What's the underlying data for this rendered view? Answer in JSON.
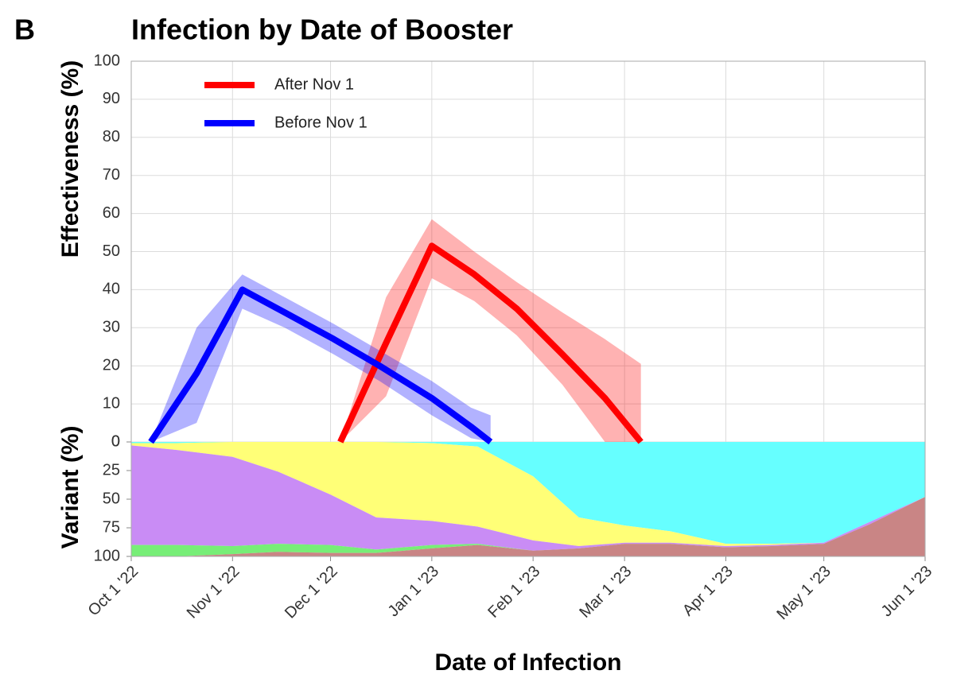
{
  "panel_label": "B",
  "chart_data": [
    {
      "type": "line",
      "title": "Infection by Date of Booster",
      "ylabel": "Effectiveness (%)",
      "ylim": [
        0,
        100
      ],
      "yticks": [
        0,
        10,
        20,
        30,
        40,
        50,
        60,
        70,
        80,
        90,
        100
      ],
      "grid": true,
      "legend": "upper left",
      "series": [
        {
          "name": "After Nov 1",
          "color": "#ff0000",
          "x": [
            "2022-12-04",
            "2022-12-18",
            "2023-01-01",
            "2023-01-14",
            "2023-01-27",
            "2023-02-10",
            "2023-02-23",
            "2023-03-06"
          ],
          "values": [
            0,
            26,
            51.5,
            44,
            35,
            23,
            11.5,
            0
          ],
          "lower": [
            0,
            12,
            43,
            37,
            28,
            15,
            0,
            0
          ],
          "upper": [
            0,
            38,
            58.5,
            50,
            42,
            34,
            27,
            20.5
          ]
        },
        {
          "name": "Before Nov 1",
          "color": "#0000ff",
          "x": [
            "2022-10-07",
            "2022-10-21",
            "2022-11-04",
            "2022-11-17",
            "2022-12-02",
            "2022-12-16",
            "2023-01-01",
            "2023-01-13",
            "2023-01-19"
          ],
          "values": [
            0,
            18,
            40,
            34,
            27,
            20,
            11.5,
            4,
            0
          ],
          "lower": [
            0,
            5,
            35,
            30,
            23,
            16,
            7,
            1,
            0
          ],
          "upper": [
            0,
            30,
            44,
            38,
            31,
            24,
            16,
            9,
            7
          ]
        }
      ]
    },
    {
      "type": "stacked_area",
      "ylabel": "Variant (%)",
      "xlabel": "Date of Infection",
      "ylim": [
        0,
        100
      ],
      "yticks": [
        0,
        25,
        50,
        75,
        100
      ],
      "inverted": true,
      "xlim": [
        "2022-10-01",
        "2023-06-01"
      ],
      "xticks": [
        {
          "value": "2022-10-01",
          "label": "Oct 1 '22"
        },
        {
          "value": "2022-11-01",
          "label": "Nov 1 '22"
        },
        {
          "value": "2022-12-01",
          "label": "Dec 1 '22"
        },
        {
          "value": "2023-01-01",
          "label": "Jan 1 '23"
        },
        {
          "value": "2023-02-01",
          "label": "Feb 1 '23"
        },
        {
          "value": "2023-03-01",
          "label": "Mar 1 '23"
        },
        {
          "value": "2023-04-01",
          "label": "Apr 1 '23"
        },
        {
          "value": "2023-05-01",
          "label": "May 1 '23"
        },
        {
          "value": "2023-06-01",
          "label": "Jun 1 '23"
        }
      ],
      "x": [
        "2022-10-01",
        "2022-10-15",
        "2022-11-01",
        "2022-11-15",
        "2022-12-01",
        "2022-12-15",
        "2023-01-01",
        "2023-01-15",
        "2023-02-01",
        "2023-02-15",
        "2023-03-01",
        "2023-03-15",
        "2023-04-01",
        "2023-04-15",
        "2023-05-01",
        "2023-05-15",
        "2023-06-01"
      ],
      "series": [
        {
          "color": "#66ffff",
          "values": [
            1,
            1,
            0,
            0,
            0,
            0,
            1,
            4,
            30,
            66,
            73,
            78,
            89,
            89,
            88,
            70,
            48
          ]
        },
        {
          "color": "#ffff77",
          "values": [
            2,
            6,
            13,
            26,
            46,
            66,
            68,
            70,
            56,
            25,
            15,
            10,
            2,
            1,
            0,
            0,
            0
          ]
        },
        {
          "color": "#c98cf5",
          "values": [
            87,
            83,
            78,
            63,
            44,
            28,
            21,
            15,
            9,
            2,
            1,
            1,
            1,
            1,
            1,
            2,
            0
          ]
        },
        {
          "color": "#77ee77",
          "values": [
            10,
            10,
            7,
            7,
            7,
            3,
            3,
            1,
            0,
            0,
            0,
            0,
            0,
            0,
            0,
            0,
            0
          ]
        },
        {
          "color": "#c98585",
          "values": [
            0,
            0,
            2,
            4,
            3,
            3,
            7,
            10,
            5,
            7,
            11,
            11,
            8,
            9,
            11,
            28,
            52
          ]
        }
      ]
    }
  ]
}
